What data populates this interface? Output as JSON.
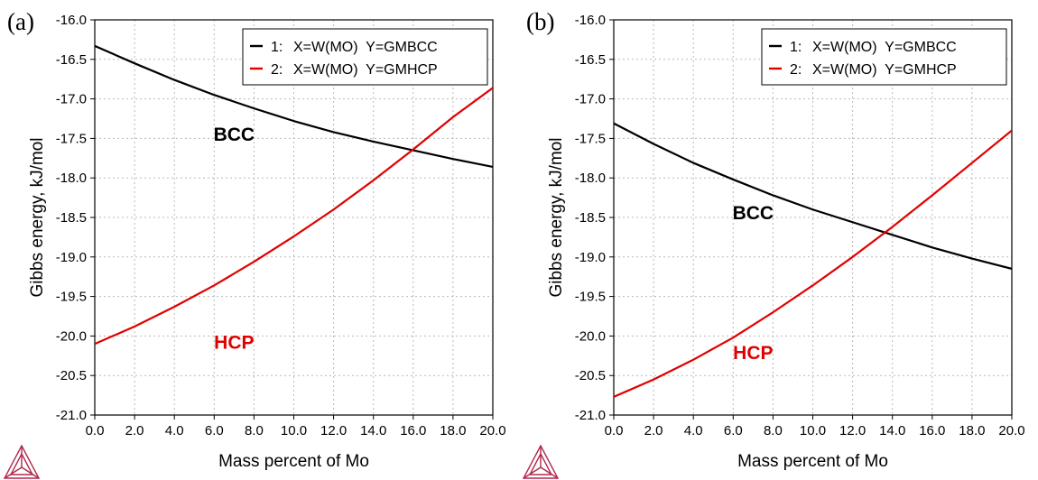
{
  "chart_data": [
    {
      "type": "line",
      "panel_label": "(a)",
      "xlabel": "Mass percent of Mo",
      "ylabel": "Gibbs energy, kJ/mol",
      "xlim": [
        0,
        20
      ],
      "ylim": [
        -21.0,
        -16.0
      ],
      "x_ticks": [
        "0.0",
        "2.0",
        "4.0",
        "6.0",
        "8.0",
        "10.0",
        "12.0",
        "14.0",
        "16.0",
        "18.0",
        "20.0"
      ],
      "y_ticks": [
        "-16.0",
        "-16.5",
        "-17.0",
        "-17.5",
        "-18.0",
        "-18.5",
        "-19.0",
        "-19.5",
        "-20.0",
        "-20.5",
        "-21.0"
      ],
      "grid": true,
      "legend_position": "top-right",
      "legend": [
        {
          "num": "1:",
          "text": "X=W(MO)  Y=GMBCC",
          "color": "#000000"
        },
        {
          "num": "2:",
          "text": "X=W(MO)  Y=GMHCP",
          "color": "#e00000"
        }
      ],
      "series": [
        {
          "x": [
            0,
            2,
            4,
            6,
            8,
            10,
            12,
            14,
            16,
            18,
            20
          ],
          "y": [
            -16.33,
            -16.55,
            -16.76,
            -16.95,
            -17.12,
            -17.28,
            -17.42,
            -17.54,
            -17.65,
            -17.76,
            -17.86
          ],
          "color": "#000000"
        },
        {
          "x": [
            0,
            2,
            4,
            6,
            8,
            10,
            12,
            14,
            16,
            18,
            20
          ],
          "y": [
            -20.1,
            -19.88,
            -19.63,
            -19.36,
            -19.06,
            -18.74,
            -18.4,
            -18.03,
            -17.64,
            -17.23,
            -16.86
          ],
          "color": "#e00000"
        }
      ],
      "annotations": [
        {
          "text": "BCC",
          "x": 7.0,
          "y": -17.44,
          "color": "#000000"
        },
        {
          "text": "HCP",
          "x": 7.0,
          "y": -20.07,
          "color": "#e00000"
        }
      ]
    },
    {
      "type": "line",
      "panel_label": "(b)",
      "xlabel": "Mass percent of Mo",
      "ylabel": "Gibbs energy, kJ/mol",
      "xlim": [
        0,
        20
      ],
      "ylim": [
        -21.0,
        -16.0
      ],
      "x_ticks": [
        "0.0",
        "2.0",
        "4.0",
        "6.0",
        "8.0",
        "10.0",
        "12.0",
        "14.0",
        "16.0",
        "18.0",
        "20.0"
      ],
      "y_ticks": [
        "-16.0",
        "-16.5",
        "-17.0",
        "-17.5",
        "-18.0",
        "-18.5",
        "-19.0",
        "-19.5",
        "-20.0",
        "-20.5",
        "-21.0"
      ],
      "grid": true,
      "legend_position": "top-right",
      "legend": [
        {
          "num": "1:",
          "text": "X=W(MO)  Y=GMBCC",
          "color": "#000000"
        },
        {
          "num": "2:",
          "text": "X=W(MO)  Y=GMHCP",
          "color": "#e00000"
        }
      ],
      "series": [
        {
          "x": [
            0,
            2,
            4,
            6,
            8,
            10,
            12,
            14,
            16,
            18,
            20
          ],
          "y": [
            -17.31,
            -17.57,
            -17.81,
            -18.02,
            -18.22,
            -18.4,
            -18.56,
            -18.72,
            -18.88,
            -19.02,
            -19.15
          ],
          "color": "#000000"
        },
        {
          "x": [
            0,
            2,
            4,
            6,
            8,
            10,
            12,
            14,
            16,
            18,
            20
          ],
          "y": [
            -20.77,
            -20.55,
            -20.3,
            -20.02,
            -19.7,
            -19.36,
            -19.0,
            -18.62,
            -18.22,
            -17.81,
            -17.4
          ],
          "color": "#e00000"
        }
      ],
      "annotations": [
        {
          "text": "BCC",
          "x": 7.0,
          "y": -18.43,
          "color": "#000000"
        },
        {
          "text": "HCP",
          "x": 7.0,
          "y": -20.2,
          "color": "#e00000"
        }
      ]
    }
  ],
  "logo": {
    "name": "triangle-logo",
    "color": "#b0284d"
  }
}
